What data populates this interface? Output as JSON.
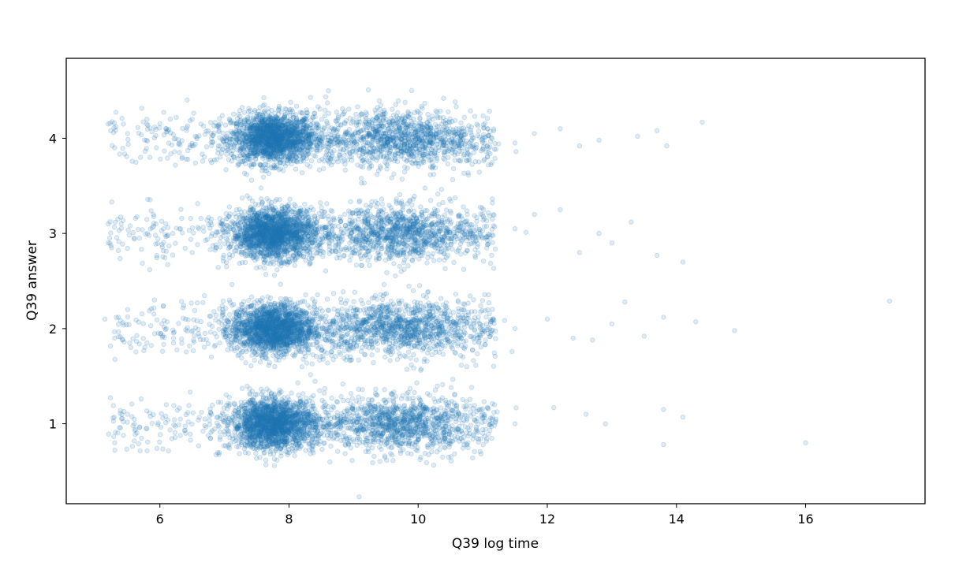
{
  "chart_data": {
    "type": "scatter",
    "title": "",
    "xlabel": "Q39 log time",
    "ylabel": "Q39 answer",
    "xlim": [
      4.55,
      17.85
    ],
    "ylim": [
      0.16,
      4.84
    ],
    "xticks": [
      6,
      8,
      10,
      12,
      14,
      16
    ],
    "yticks": [
      1,
      2,
      3,
      4
    ],
    "grid": false,
    "legend": "none",
    "color": "#1f77b4",
    "marker_alpha": 0.15,
    "y_jitter_note": "points scattered vertically around integer answers",
    "series": [
      {
        "answer": 4,
        "points": [
          [
            5.2,
            4.15
          ],
          [
            5.3,
            3.9
          ],
          [
            5.5,
            4.05
          ],
          [
            5.7,
            3.8
          ],
          [
            5.8,
            4.2
          ],
          [
            6.1,
            4.1
          ],
          [
            6.3,
            3.85
          ],
          [
            6.5,
            4.2
          ],
          [
            6.8,
            4.0
          ],
          [
            7.2,
            4.05
          ],
          [
            7.5,
            3.95
          ],
          [
            7.8,
            4.0
          ],
          [
            8.0,
            4.1
          ],
          [
            8.5,
            3.9
          ],
          [
            9.0,
            4.2
          ],
          [
            9.5,
            4.05
          ],
          [
            10.0,
            3.95
          ],
          [
            10.5,
            4.1
          ],
          [
            11.0,
            4.0
          ],
          [
            11.5,
            3.95
          ],
          [
            11.8,
            4.05
          ],
          [
            12.2,
            4.1
          ],
          [
            12.5,
            3.92
          ],
          [
            12.8,
            3.98
          ],
          [
            13.4,
            4.02
          ],
          [
            13.7,
            4.08
          ],
          [
            13.85,
            3.92
          ],
          [
            14.4,
            4.17
          ]
        ]
      },
      {
        "answer": 3,
        "points": [
          [
            5.2,
            2.9
          ],
          [
            5.4,
            3.1
          ],
          [
            5.6,
            2.95
          ],
          [
            5.9,
            3.2
          ],
          [
            6.2,
            3.0
          ],
          [
            6.5,
            2.8
          ],
          [
            6.8,
            3.15
          ],
          [
            7.3,
            2.95
          ],
          [
            7.8,
            3.0
          ],
          [
            8.0,
            3.1
          ],
          [
            8.5,
            2.9
          ],
          [
            9.0,
            3.05
          ],
          [
            9.5,
            2.95
          ],
          [
            10.0,
            3.0
          ],
          [
            10.5,
            3.1
          ],
          [
            11.0,
            2.95
          ],
          [
            11.5,
            3.05
          ],
          [
            11.8,
            3.2
          ],
          [
            12.2,
            3.25
          ],
          [
            12.5,
            2.8
          ],
          [
            12.8,
            3.0
          ],
          [
            13.0,
            2.9
          ],
          [
            13.3,
            3.12
          ],
          [
            13.7,
            2.77
          ],
          [
            14.1,
            2.7
          ]
        ]
      },
      {
        "answer": 2,
        "points": [
          [
            5.15,
            2.1
          ],
          [
            5.3,
            1.9
          ],
          [
            5.5,
            2.2
          ],
          [
            5.8,
            1.85
          ],
          [
            6.1,
            2.0
          ],
          [
            6.4,
            2.1
          ],
          [
            6.7,
            1.95
          ],
          [
            7.2,
            2.0
          ],
          [
            7.8,
            2.05
          ],
          [
            8.0,
            1.9
          ],
          [
            8.5,
            2.0
          ],
          [
            9.0,
            2.05
          ],
          [
            9.5,
            1.95
          ],
          [
            10.0,
            2.0
          ],
          [
            10.5,
            2.05
          ],
          [
            11.0,
            1.95
          ],
          [
            11.5,
            2.0
          ],
          [
            12.0,
            2.1
          ],
          [
            12.4,
            1.9
          ],
          [
            12.7,
            1.88
          ],
          [
            13.0,
            2.05
          ],
          [
            13.2,
            2.28
          ],
          [
            13.5,
            1.92
          ],
          [
            13.8,
            2.12
          ],
          [
            14.3,
            2.07
          ],
          [
            14.9,
            1.98
          ],
          [
            17.3,
            2.29
          ]
        ]
      },
      {
        "answer": 1,
        "points": [
          [
            5.3,
            0.8
          ],
          [
            5.5,
            1.1
          ],
          [
            5.8,
            0.95
          ],
          [
            6.1,
            1.2
          ],
          [
            6.4,
            0.9
          ],
          [
            6.7,
            1.05
          ],
          [
            7.2,
            0.95
          ],
          [
            7.8,
            1.0
          ],
          [
            8.0,
            1.05
          ],
          [
            8.5,
            0.9
          ],
          [
            9.0,
            1.0
          ],
          [
            9.5,
            0.95
          ],
          [
            10.0,
            1.0
          ],
          [
            10.5,
            1.05
          ],
          [
            11.0,
            0.9
          ],
          [
            11.5,
            1.0
          ],
          [
            12.1,
            1.17
          ],
          [
            12.6,
            1.1
          ],
          [
            12.9,
            1.0
          ],
          [
            13.8,
            1.15
          ],
          [
            13.8,
            0.78
          ],
          [
            14.1,
            1.07
          ],
          [
            16.0,
            0.8
          ]
        ]
      }
    ]
  }
}
